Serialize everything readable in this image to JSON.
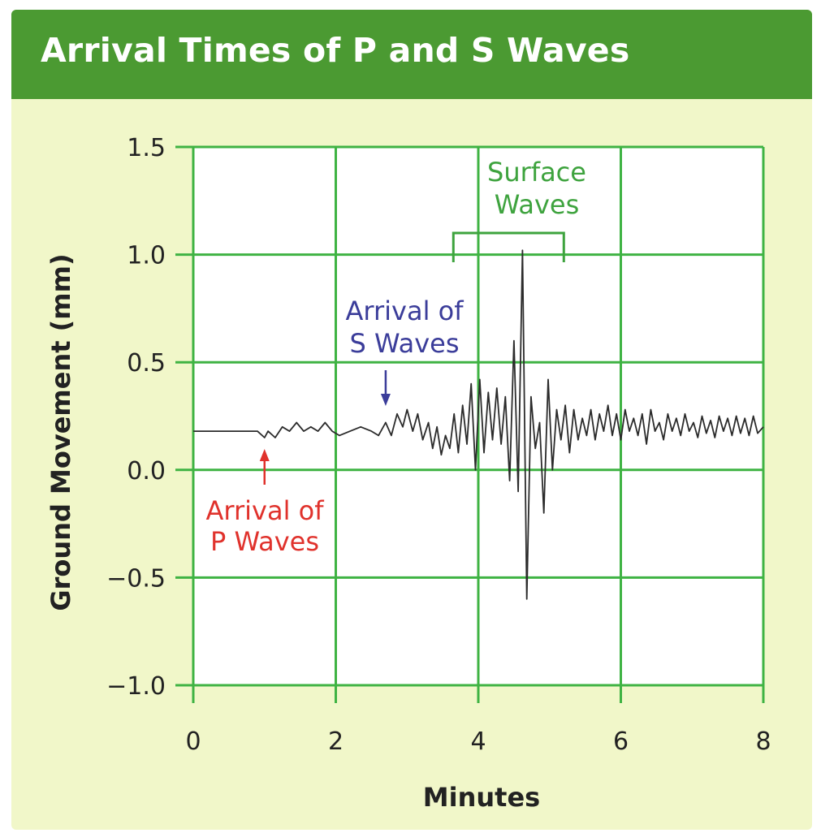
{
  "chart_data": {
    "type": "line",
    "title": "Arrival Times of P and S Waves",
    "xlabel": "Minutes",
    "ylabel": "Ground Movement  (mm)",
    "xlim": [
      0,
      8
    ],
    "ylim": [
      -1.0,
      1.5
    ],
    "x_ticks": [
      "0",
      "2",
      "4",
      "6",
      "8"
    ],
    "y_ticks": [
      "1.5",
      "1.0",
      "0.5",
      "0.0",
      "−0.5",
      "−1.0"
    ],
    "grid": true,
    "series": [
      {
        "color": "#2b2b2b",
        "x": [
          0,
          0.5,
          0.9,
          1.0,
          1.05,
          1.15,
          1.25,
          1.35,
          1.45,
          1.55,
          1.65,
          1.75,
          1.85,
          1.95,
          2.05,
          2.2,
          2.35,
          2.5,
          2.6,
          2.7,
          2.78,
          2.86,
          2.94,
          3.0,
          3.08,
          3.15,
          3.22,
          3.3,
          3.36,
          3.42,
          3.48,
          3.54,
          3.6,
          3.66,
          3.72,
          3.78,
          3.84,
          3.9,
          3.96,
          4.02,
          4.08,
          4.14,
          4.2,
          4.26,
          4.32,
          4.38,
          4.44,
          4.5,
          4.56,
          4.62,
          4.68,
          4.74,
          4.8,
          4.86,
          4.92,
          4.98,
          5.04,
          5.1,
          5.16,
          5.22,
          5.28,
          5.34,
          5.4,
          5.46,
          5.52,
          5.58,
          5.64,
          5.7,
          5.76,
          5.82,
          5.88,
          5.94,
          6.0,
          6.06,
          6.12,
          6.18,
          6.24,
          6.3,
          6.36,
          6.42,
          6.48,
          6.54,
          6.6,
          6.66,
          6.72,
          6.78,
          6.84,
          6.9,
          6.96,
          7.02,
          7.08,
          7.14,
          7.2,
          7.26,
          7.32,
          7.38,
          7.44,
          7.5,
          7.56,
          7.62,
          7.68,
          7.74,
          7.8,
          7.86,
          7.92,
          8.0
        ],
        "y": [
          0.18,
          0.18,
          0.18,
          0.15,
          0.18,
          0.15,
          0.2,
          0.18,
          0.22,
          0.18,
          0.2,
          0.18,
          0.22,
          0.18,
          0.16,
          0.18,
          0.2,
          0.18,
          0.16,
          0.22,
          0.16,
          0.26,
          0.2,
          0.28,
          0.18,
          0.26,
          0.14,
          0.22,
          0.1,
          0.2,
          0.07,
          0.16,
          0.1,
          0.26,
          0.08,
          0.3,
          0.12,
          0.4,
          0.0,
          0.42,
          0.08,
          0.36,
          0.14,
          0.38,
          0.12,
          0.34,
          -0.05,
          0.6,
          -0.1,
          1.02,
          -0.6,
          0.34,
          0.1,
          0.22,
          -0.2,
          0.42,
          0.0,
          0.28,
          0.14,
          0.3,
          0.08,
          0.28,
          0.14,
          0.24,
          0.16,
          0.28,
          0.14,
          0.26,
          0.18,
          0.3,
          0.16,
          0.26,
          0.14,
          0.28,
          0.18,
          0.24,
          0.16,
          0.26,
          0.12,
          0.28,
          0.18,
          0.22,
          0.14,
          0.26,
          0.18,
          0.24,
          0.16,
          0.26,
          0.18,
          0.22,
          0.15,
          0.25,
          0.17,
          0.23,
          0.15,
          0.25,
          0.18,
          0.24,
          0.16,
          0.25,
          0.17,
          0.24,
          0.16,
          0.25,
          0.17,
          0.2
        ]
      }
    ],
    "annotations": [
      {
        "text": [
          "Arrival of",
          "P Waves"
        ],
        "color": "#e0322c",
        "arrow_x": 1.0,
        "direction": "up"
      },
      {
        "text": [
          "Arrival of",
          "S Waves"
        ],
        "color": "#3b3d9a",
        "arrow_x": 2.7,
        "direction": "down"
      },
      {
        "text": [
          "Surface",
          "Waves"
        ],
        "color": "#3ea33e",
        "bracket_x": [
          3.65,
          5.2
        ]
      }
    ]
  },
  "colors": {
    "title_bar": "#4b9a32",
    "panel_bg": "#f1f7c9",
    "grid": "#3fb343",
    "plot_bg": "#ffffff"
  }
}
